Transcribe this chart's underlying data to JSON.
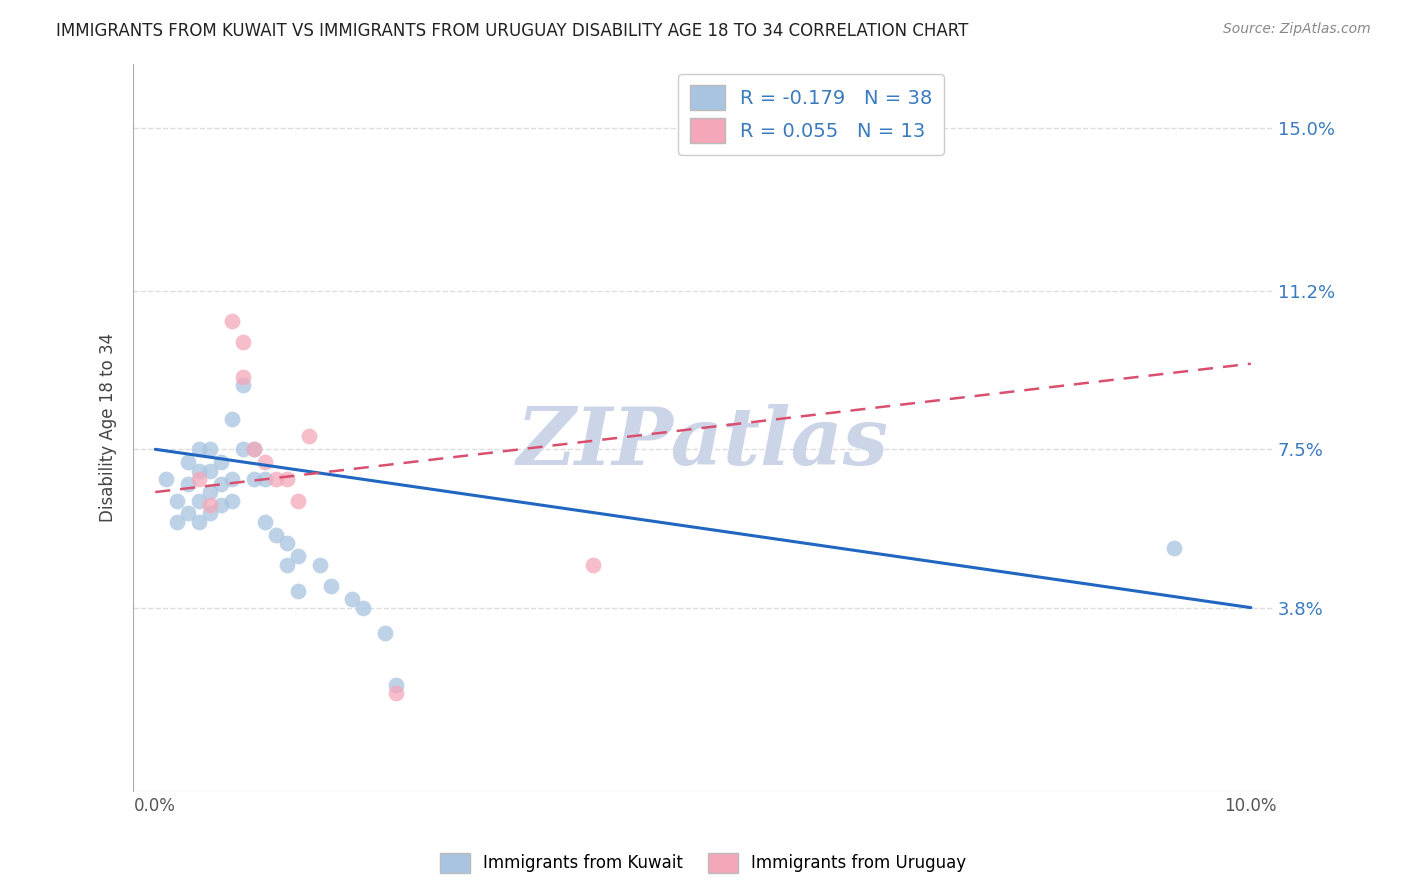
{
  "title": "IMMIGRANTS FROM KUWAIT VS IMMIGRANTS FROM URUGUAY DISABILITY AGE 18 TO 34 CORRELATION CHART",
  "source": "Source: ZipAtlas.com",
  "xlabel": "",
  "ylabel": "Disability Age 18 to 34",
  "xlim": [
    -0.002,
    0.102
  ],
  "ylim": [
    -0.005,
    0.165
  ],
  "xticks": [
    0.0,
    0.02,
    0.04,
    0.06,
    0.08,
    0.1
  ],
  "xtick_labels": [
    "0.0%",
    "",
    "",
    "",
    "",
    "10.0%"
  ],
  "ytick_labels_right": [
    "3.8%",
    "7.5%",
    "11.2%",
    "15.0%"
  ],
  "ytick_vals_right": [
    0.038,
    0.075,
    0.112,
    0.15
  ],
  "kuwait_color": "#a8c4e0",
  "uruguay_color": "#f4a7b9",
  "kuwait_line_color": "#2166c0",
  "uruguay_line_color": "#d94f6e",
  "R_kuwait": -0.179,
  "N_kuwait": 38,
  "R_uruguay": 0.055,
  "N_uruguay": 13,
  "kuwait_x": [
    0.001,
    0.002,
    0.002,
    0.003,
    0.003,
    0.003,
    0.004,
    0.004,
    0.004,
    0.004,
    0.005,
    0.005,
    0.005,
    0.005,
    0.006,
    0.006,
    0.006,
    0.007,
    0.007,
    0.007,
    0.008,
    0.008,
    0.009,
    0.009,
    0.01,
    0.01,
    0.011,
    0.012,
    0.012,
    0.013,
    0.013,
    0.015,
    0.016,
    0.018,
    0.019,
    0.021,
    0.022,
    0.093
  ],
  "kuwait_y": [
    0.068,
    0.063,
    0.058,
    0.072,
    0.067,
    0.06,
    0.075,
    0.07,
    0.063,
    0.058,
    0.075,
    0.07,
    0.065,
    0.06,
    0.072,
    0.067,
    0.062,
    0.082,
    0.068,
    0.063,
    0.09,
    0.075,
    0.075,
    0.068,
    0.068,
    0.058,
    0.055,
    0.053,
    0.048,
    0.05,
    0.042,
    0.048,
    0.043,
    0.04,
    0.038,
    0.032,
    0.02,
    0.052
  ],
  "uruguay_x": [
    0.004,
    0.005,
    0.007,
    0.008,
    0.008,
    0.009,
    0.01,
    0.011,
    0.012,
    0.013,
    0.014,
    0.022,
    0.04
  ],
  "uruguay_y": [
    0.068,
    0.062,
    0.105,
    0.1,
    0.092,
    0.075,
    0.072,
    0.068,
    0.068,
    0.063,
    0.078,
    0.018,
    0.048
  ],
  "watermark": "ZIPatlas",
  "watermark_color": "#ccd5e8",
  "background_color": "#ffffff",
  "grid_color": "#dddddd",
  "kuwait_trendline_x": [
    0.0,
    0.1
  ],
  "kuwait_trendline_y": [
    0.075,
    0.038
  ],
  "uruguay_trendline_x": [
    0.0,
    0.1
  ],
  "uruguay_trendline_y": [
    0.065,
    0.095
  ]
}
